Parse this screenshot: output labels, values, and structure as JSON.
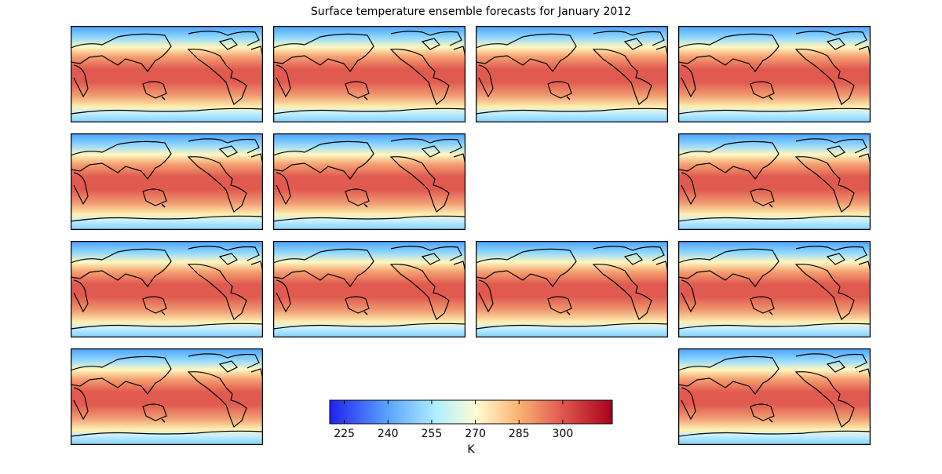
{
  "title": "Surface temperature ensemble forecasts for January 2012",
  "colorbar": {
    "label": "K",
    "lim": [
      220,
      317
    ],
    "ticks": [
      225,
      240,
      255,
      270,
      285,
      300
    ]
  }
}
